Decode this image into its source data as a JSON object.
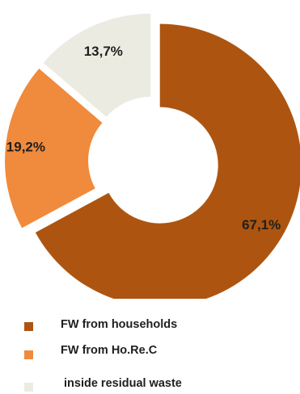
{
  "chart_data": {
    "type": "pie",
    "title": "",
    "categories": [
      "FW from households",
      "FW from Ho.Re.C",
      "inside residual waste"
    ],
    "values": [
      67.1,
      19.2,
      13.7
    ],
    "value_labels": [
      "67,1%",
      "19,2%",
      "13,7%"
    ],
    "colors": [
      "#ad5510",
      "#f08a3c",
      "#ecebe2"
    ],
    "donut": true,
    "exploded": true,
    "legend_position": "bottom-left"
  },
  "legend": {
    "items": [
      {
        "label": "FW from households",
        "color": "#ad5510"
      },
      {
        "label": "FW from Ho.Re.C",
        "color": "#f08a3c"
      },
      {
        "label": "inside residual waste",
        "color": "#ecebe2"
      }
    ]
  }
}
